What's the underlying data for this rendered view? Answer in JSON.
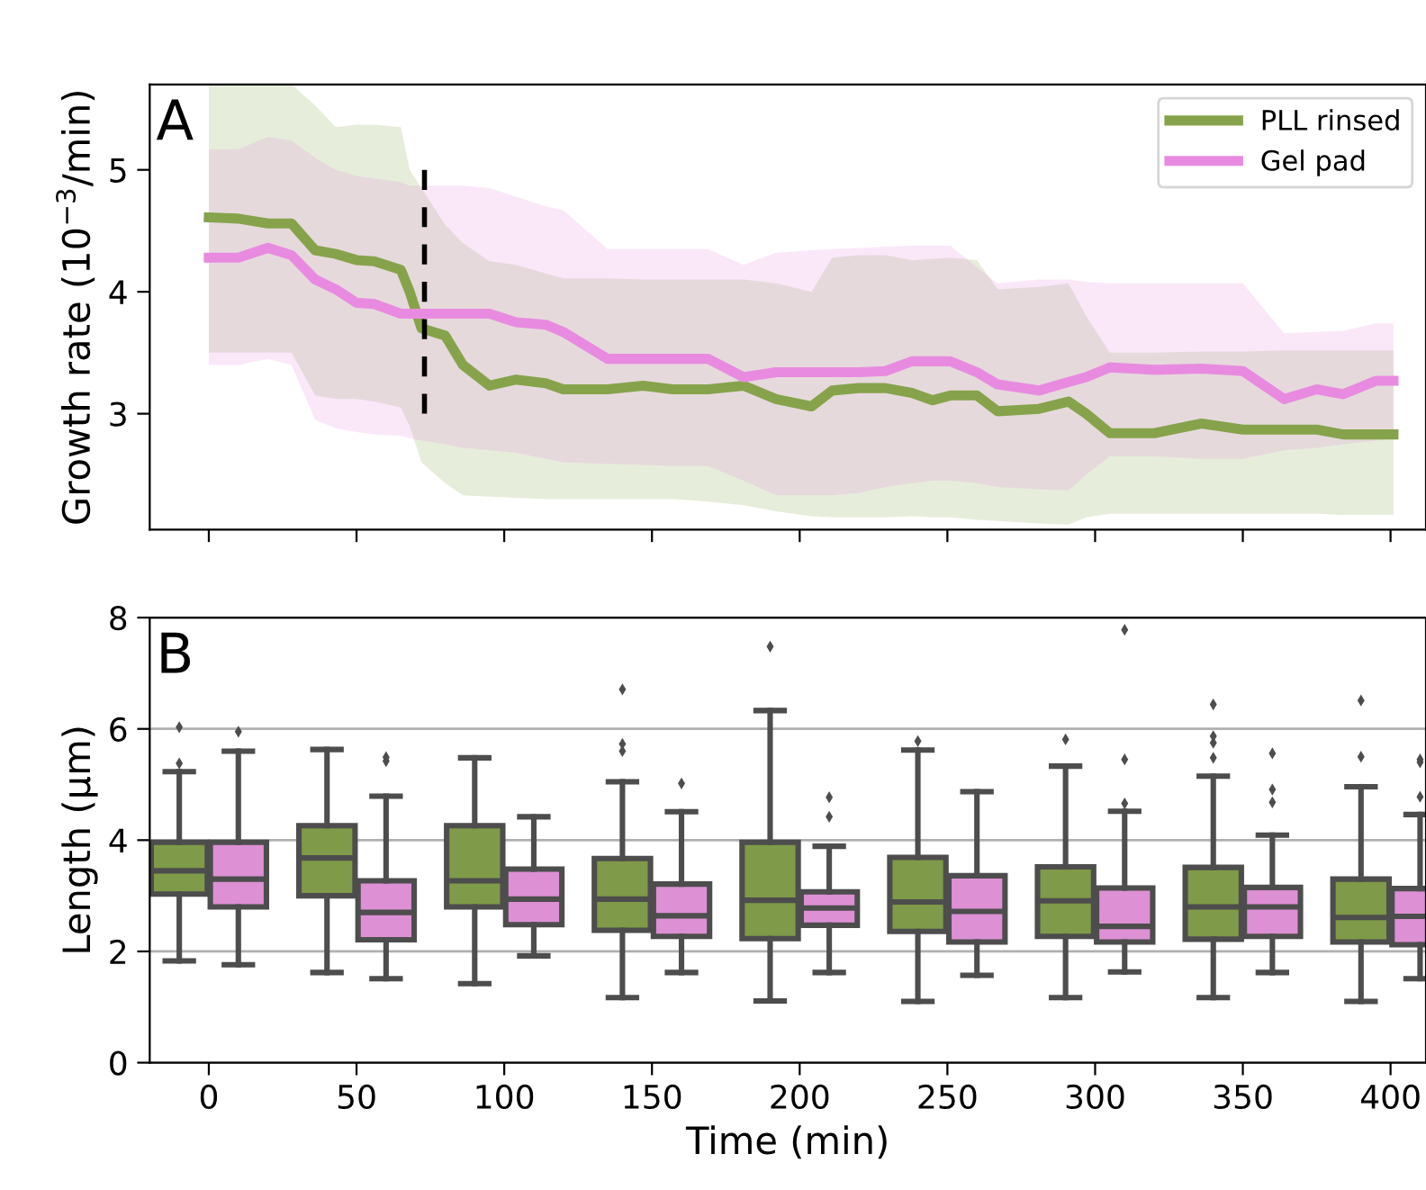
{
  "chart_data": [
    {
      "type": "line",
      "ylabel": "Growth rate (10$^{−3}$/min)",
      "annotations": [
        "A"
      ],
      "x": [
        0,
        10,
        20,
        28,
        36,
        43,
        50,
        56,
        65,
        68,
        72,
        80,
        86,
        95,
        104,
        114,
        120,
        135,
        147,
        157,
        169,
        181,
        192,
        204,
        211,
        220,
        229,
        238,
        245,
        251,
        260,
        267,
        281,
        291,
        297,
        305,
        320,
        336,
        350,
        364,
        375,
        384,
        395,
        401
      ],
      "xlim": [
        -20,
        412
      ],
      "ylim": [
        2.05,
        5.7
      ],
      "xticks": [
        0,
        50,
        100,
        150,
        200,
        250,
        300,
        350,
        400
      ],
      "yticks": [
        3,
        4,
        5
      ],
      "tick_labels": "y",
      "legend": "top right",
      "grid": false,
      "series": [
        {
          "name": "PLL rinsed",
          "color": "#86a34b",
          "values": [
            4.61,
            4.6,
            4.56,
            4.56,
            4.34,
            4.31,
            4.26,
            4.25,
            4.18,
            4.0,
            3.7,
            3.64,
            3.4,
            3.23,
            3.28,
            3.25,
            3.2,
            3.2,
            3.23,
            3.2,
            3.2,
            3.23,
            3.12,
            3.06,
            3.19,
            3.21,
            3.21,
            3.17,
            3.11,
            3.15,
            3.15,
            3.02,
            3.04,
            3.1,
            3.0,
            2.84,
            2.84,
            2.92,
            2.87,
            2.87,
            2.87,
            2.83,
            2.83,
            2.83
          ],
          "lower": [
            3.5,
            3.5,
            3.5,
            3.5,
            3.15,
            3.12,
            3.12,
            3.1,
            3.05,
            2.9,
            2.6,
            2.43,
            2.33,
            2.32,
            2.31,
            2.3,
            2.3,
            2.3,
            2.3,
            2.3,
            2.28,
            2.25,
            2.2,
            2.16,
            2.15,
            2.15,
            2.15,
            2.16,
            2.15,
            2.15,
            2.13,
            2.12,
            2.1,
            2.09,
            2.15,
            2.18,
            2.18,
            2.18,
            2.18,
            2.18,
            2.18,
            2.17,
            2.17,
            2.17
          ],
          "upper": [
            5.7,
            5.7,
            5.7,
            5.7,
            5.53,
            5.35,
            5.37,
            5.37,
            5.35,
            5.0,
            4.85,
            4.55,
            4.4,
            4.25,
            4.22,
            4.15,
            4.11,
            4.11,
            4.1,
            4.1,
            4.1,
            4.1,
            4.07,
            4.0,
            4.28,
            4.3,
            4.3,
            4.26,
            4.27,
            4.28,
            4.26,
            4.02,
            4.04,
            4.07,
            3.8,
            3.5,
            3.5,
            3.51,
            3.51,
            3.52,
            3.52,
            3.52,
            3.52,
            3.52
          ]
        },
        {
          "name": "Gel pad",
          "color": "#e88be0",
          "values": [
            4.28,
            4.28,
            4.36,
            4.3,
            4.1,
            4.02,
            3.91,
            3.9,
            3.82,
            3.82,
            3.82,
            3.82,
            3.82,
            3.82,
            3.75,
            3.73,
            3.67,
            3.45,
            3.45,
            3.45,
            3.45,
            3.3,
            3.34,
            3.34,
            3.34,
            3.34,
            3.35,
            3.43,
            3.43,
            3.43,
            3.34,
            3.24,
            3.19,
            3.26,
            3.3,
            3.38,
            3.36,
            3.37,
            3.35,
            3.12,
            3.2,
            3.16,
            3.27,
            3.27
          ],
          "lower": [
            3.4,
            3.4,
            3.45,
            3.4,
            2.95,
            2.88,
            2.85,
            2.83,
            2.82,
            2.8,
            2.78,
            2.75,
            2.72,
            2.7,
            2.68,
            2.63,
            2.6,
            2.59,
            2.58,
            2.57,
            2.57,
            2.45,
            2.33,
            2.33,
            2.33,
            2.35,
            2.4,
            2.43,
            2.45,
            2.45,
            2.43,
            2.4,
            2.38,
            2.37,
            2.5,
            2.65,
            2.65,
            2.63,
            2.63,
            2.7,
            2.72,
            2.75,
            2.78,
            2.8
          ],
          "upper": [
            5.17,
            5.17,
            5.27,
            5.24,
            5.1,
            5.0,
            4.95,
            4.93,
            4.9,
            4.87,
            4.87,
            4.87,
            4.87,
            4.85,
            4.78,
            4.7,
            4.67,
            4.35,
            4.35,
            4.35,
            4.35,
            4.22,
            4.32,
            4.34,
            4.35,
            4.36,
            4.37,
            4.38,
            4.38,
            4.38,
            4.2,
            4.07,
            4.1,
            4.1,
            4.08,
            4.07,
            4.07,
            4.07,
            4.07,
            3.66,
            3.67,
            3.68,
            3.74,
            3.74
          ]
        },
        {
          "type": "line",
          "color": "#000000",
          "line_style": "dashed",
          "x": [
            73,
            73
          ],
          "values": [
            3,
            5
          ]
        }
      ]
    },
    {
      "type": "box",
      "xlabel": "Time (min)",
      "ylabel": "Length (μm)",
      "annotations": [
        "B"
      ],
      "categories": [
        "0",
        "50",
        "100",
        "150",
        "200",
        "250",
        "300",
        "350",
        "400"
      ],
      "ylim": [
        0,
        8
      ],
      "yticks": [
        0,
        2,
        4,
        6,
        8
      ],
      "grid": "y",
      "legend": false,
      "series": [
        {
          "color": "#7f9a48",
          "boxes": [
            {
              "low": 1.83,
              "q1": 3.03,
              "median": 3.45,
              "q3": 3.96,
              "high": 5.23,
              "outliers": [
                6.03,
                5.38
              ]
            },
            {
              "low": 1.62,
              "q1": 3.0,
              "median": 3.68,
              "q3": 4.26,
              "high": 5.63
            },
            {
              "low": 1.42,
              "q1": 2.8,
              "median": 3.27,
              "q3": 4.26,
              "high": 5.48
            },
            {
              "low": 1.17,
              "q1": 2.38,
              "median": 2.94,
              "q3": 3.67,
              "high": 5.05,
              "outliers": [
                6.71,
                5.73,
                5.6
              ]
            },
            {
              "low": 1.11,
              "q1": 2.23,
              "median": 2.92,
              "q3": 3.96,
              "high": 6.33,
              "outliers": [
                7.48
              ]
            },
            {
              "low": 1.1,
              "q1": 2.36,
              "median": 2.89,
              "q3": 3.69,
              "high": 5.62,
              "outliers": [
                5.78
              ]
            },
            {
              "low": 1.17,
              "q1": 2.27,
              "median": 2.91,
              "q3": 3.52,
              "high": 5.33,
              "outliers": [
                5.81
              ]
            },
            {
              "low": 1.17,
              "q1": 2.22,
              "median": 2.8,
              "q3": 3.51,
              "high": 5.15,
              "outliers": [
                6.44,
                5.87,
                5.75,
                5.48
              ]
            },
            {
              "low": 1.1,
              "q1": 2.17,
              "median": 2.61,
              "q3": 3.3,
              "high": 4.96,
              "outliers": [
                6.51,
                5.5
              ]
            }
          ]
        },
        {
          "color": "#dd90d4",
          "boxes": [
            {
              "low": 1.76,
              "q1": 2.8,
              "median": 3.3,
              "q3": 3.96,
              "high": 5.6,
              "outliers": [
                5.95
              ]
            },
            {
              "low": 1.51,
              "q1": 2.21,
              "median": 2.7,
              "q3": 3.27,
              "high": 4.79,
              "outliers": [
                5.49,
                5.42
              ]
            },
            {
              "low": 1.92,
              "q1": 2.48,
              "median": 2.94,
              "q3": 3.48,
              "high": 4.42
            },
            {
              "low": 1.62,
              "q1": 2.27,
              "median": 2.64,
              "q3": 3.21,
              "high": 4.51,
              "outliers": [
                5.02
              ]
            },
            {
              "low": 1.62,
              "q1": 2.47,
              "median": 2.78,
              "q3": 3.07,
              "high": 3.89,
              "outliers": [
                4.77,
                4.42
              ]
            },
            {
              "low": 1.57,
              "q1": 2.17,
              "median": 2.72,
              "q3": 3.36,
              "high": 4.87
            },
            {
              "low": 1.63,
              "q1": 2.17,
              "median": 2.45,
              "q3": 3.14,
              "high": 4.52,
              "outliers": [
                7.78,
                5.45,
                4.66
              ]
            },
            {
              "low": 1.62,
              "q1": 2.27,
              "median": 2.8,
              "q3": 3.15,
              "high": 4.09,
              "outliers": [
                5.56,
                4.91,
                4.68
              ]
            },
            {
              "low": 1.51,
              "q1": 2.12,
              "median": 2.63,
              "q3": 3.13,
              "high": 4.46,
              "outliers": [
                5.45,
                5.4,
                4.78
              ]
            }
          ]
        }
      ]
    }
  ]
}
